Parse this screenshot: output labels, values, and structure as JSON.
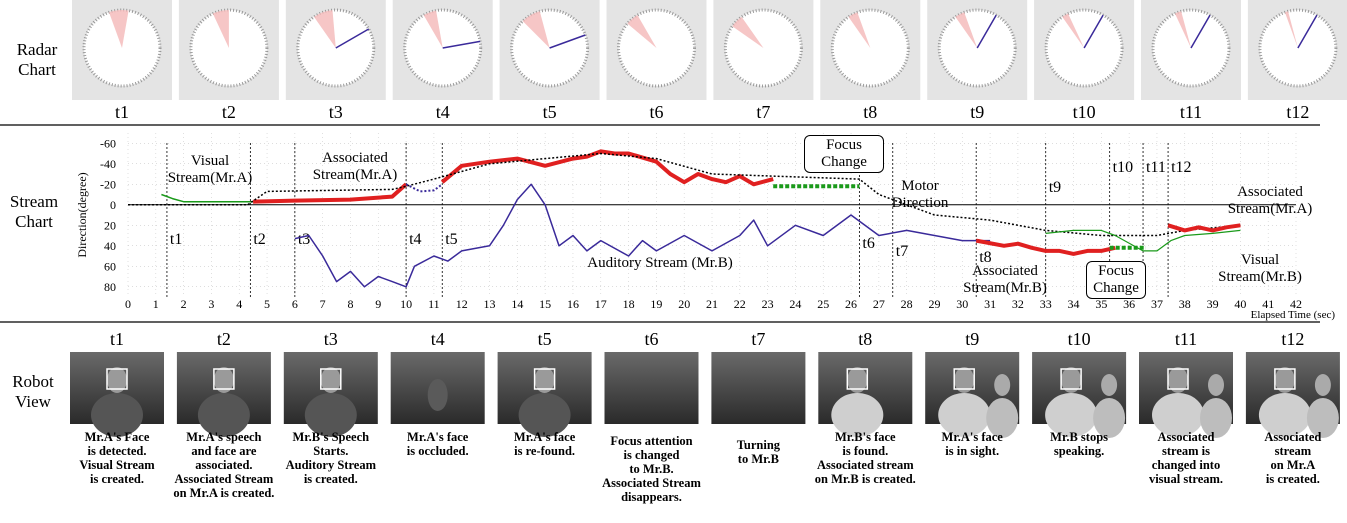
{
  "row_labels": {
    "radar": "Radar Chart",
    "stream": "Stream Chart",
    "robot": "Robot View"
  },
  "radar": {
    "labels": [
      "t1",
      "t2",
      "t3",
      "t4",
      "t5",
      "t6",
      "t7",
      "t8",
      "t9",
      "t10",
      "t11",
      "t12"
    ]
  },
  "chart_data": {
    "type": "line",
    "y_label": "Direction(degree)",
    "x_label": "Elapsed Time (sec)",
    "xlim": [
      0,
      42
    ],
    "xticks": [
      0,
      1,
      2,
      3,
      4,
      5,
      6,
      7,
      8,
      9,
      10,
      11,
      12,
      13,
      14,
      15,
      16,
      17,
      18,
      19,
      20,
      21,
      22,
      23,
      24,
      25,
      26,
      27,
      28,
      29,
      30,
      31,
      32,
      33,
      34,
      35,
      36,
      37,
      38,
      39,
      40,
      41,
      42
    ],
    "ylim": [
      -70,
      90
    ],
    "y_inverted": true,
    "yticks": [
      -60,
      -40,
      -20,
      0,
      20,
      40,
      60,
      80
    ],
    "grid": true,
    "series": [
      {
        "name": "Visual Stream(Mr.A)",
        "color": "#1a9a1a",
        "width": 1.5,
        "x": [
          1.2,
          1.6,
          2,
          3,
          4,
          4.5
        ],
        "values": [
          -10,
          -6,
          -3,
          -3,
          -3,
          -3
        ]
      },
      {
        "name": "Associated Stream(Mr.A)",
        "color": "#e02020",
        "width": 4,
        "x": [
          4.5,
          6,
          8,
          9.5,
          10,
          null,
          11.3,
          12,
          13,
          14,
          15,
          16,
          16.5,
          17,
          17.5,
          18,
          19,
          19.5,
          20,
          20.5,
          21,
          21.5,
          22,
          22.5,
          23.2
        ],
        "values": [
          -3,
          -4,
          -5,
          -8,
          -20,
          null,
          -22,
          -38,
          -42,
          -45,
          -38,
          -45,
          -47,
          -52,
          -50,
          -50,
          -42,
          -30,
          -22,
          -30,
          -25,
          -22,
          -28,
          -20,
          -25
        ]
      },
      {
        "name": "Motor Direction",
        "color": "#000000",
        "width": 1.5,
        "dash": true,
        "x": [
          0,
          4.3,
          5,
          9.5,
          10,
          11,
          13,
          15,
          17,
          19,
          21,
          26.3,
          27,
          28,
          29,
          31,
          33,
          35,
          37,
          38,
          40
        ],
        "values": [
          0,
          0,
          -13,
          -15,
          -18,
          -25,
          -40,
          -45,
          -50,
          -45,
          -30,
          -25,
          -10,
          0,
          10,
          15,
          25,
          30,
          30,
          25,
          20
        ]
      },
      {
        "name": "Auditory Stream (Mr.B)",
        "color": "#3a2a9a",
        "width": 1.5,
        "x": [
          6,
          6.5,
          7,
          7.5,
          8,
          8.5,
          9,
          9.5,
          10,
          10.3,
          11,
          11.5,
          12,
          13,
          13.5,
          14,
          14.5,
          15,
          15.5,
          16,
          16.5,
          17,
          18,
          18.5,
          19,
          20,
          21,
          22,
          22.5,
          23,
          24,
          25,
          26,
          27,
          28,
          29,
          30,
          31
        ],
        "values": [
          33,
          30,
          50,
          75,
          65,
          80,
          70,
          75,
          80,
          60,
          50,
          55,
          45,
          40,
          20,
          -5,
          -20,
          0,
          40,
          30,
          45,
          35,
          50,
          35,
          45,
          30,
          45,
          30,
          15,
          40,
          20,
          30,
          10,
          30,
          25,
          30,
          35,
          35
        ]
      },
      {
        "name": "Associated Stream(Mr.B)",
        "color": "#e02020",
        "width": 4,
        "x": [
          30.5,
          31.5,
          32,
          32.5,
          33,
          33.5,
          34,
          34.5,
          35,
          35.5
        ],
        "values": [
          35,
          40,
          38,
          42,
          45,
          45,
          48,
          45,
          45,
          42
        ]
      },
      {
        "name": "Visual Stream(Mr.B)",
        "color": "#1a9a1a",
        "width": 1.2,
        "x": [
          33,
          34,
          35,
          35.5,
          36.5,
          37,
          37.5,
          38,
          39,
          40
        ],
        "values": [
          28,
          25,
          25,
          30,
          45,
          45,
          35,
          30,
          28,
          25
        ]
      },
      {
        "name": "Associated Stream(Mr.A)",
        "color": "#e02020",
        "width": 4,
        "x": [
          37.4,
          38,
          38.5,
          39,
          39.5,
          40
        ],
        "values": [
          20,
          25,
          22,
          25,
          22,
          20
        ]
      },
      {
        "color": "#1a9a1a",
        "width": 4,
        "dash": true,
        "x": [
          23.2,
          24,
          25,
          26.3
        ],
        "values": [
          -18,
          -18,
          -18,
          -18
        ]
      },
      {
        "color": "#1a9a1a",
        "width": 4,
        "dash": true,
        "x": [
          35.3,
          36,
          36.6
        ],
        "values": [
          42,
          42,
          42
        ]
      },
      {
        "color": "#3a2a9a",
        "width": 2,
        "dash": true,
        "x": [
          10,
          10.5,
          11,
          11.3
        ],
        "values": [
          -20,
          -13,
          -14,
          -20
        ]
      }
    ],
    "markers": [
      "t1",
      "t2",
      "t3",
      "t4",
      "t5",
      "t6",
      "t7",
      "t8",
      "t9",
      "t10",
      "t11",
      "t12"
    ],
    "annotations": [
      "Focus Change",
      "Focus Change"
    ]
  },
  "robot_view": {
    "labels": [
      "t1",
      "t2",
      "t3",
      "t4",
      "t5",
      "t6",
      "t7",
      "t8",
      "t9",
      "t10",
      "t11",
      "t12"
    ],
    "captions": [
      [
        "Mr.A's Face",
        "is detected.",
        "Visual Stream",
        "is created."
      ],
      [
        "Mr.A's speech",
        "and face are",
        "associated.",
        "Associated Stream",
        "on Mr.A is created."
      ],
      [
        "Mr.B's Speech",
        "Starts.",
        "Auditory Stream",
        "is created."
      ],
      [
        "Mr.A's face",
        "is occluded."
      ],
      [
        "Mr.A's face",
        "is re-found."
      ],
      [
        "Focus attention",
        "is changed",
        "to Mr.B.",
        "Associated Stream",
        "disappears."
      ],
      [
        "Turning",
        "to Mr.B"
      ],
      [
        "Mr.B's face",
        "is found.",
        "Associated stream",
        "on Mr.B is created."
      ],
      [
        "Mr.A's face",
        "is in sight."
      ],
      [
        "Mr.B stops",
        "speaking."
      ],
      [
        "Associated",
        "stream is",
        "changed into",
        "visual stream."
      ],
      [
        "Associated",
        "stream",
        "on Mr.A",
        "is created."
      ]
    ]
  }
}
